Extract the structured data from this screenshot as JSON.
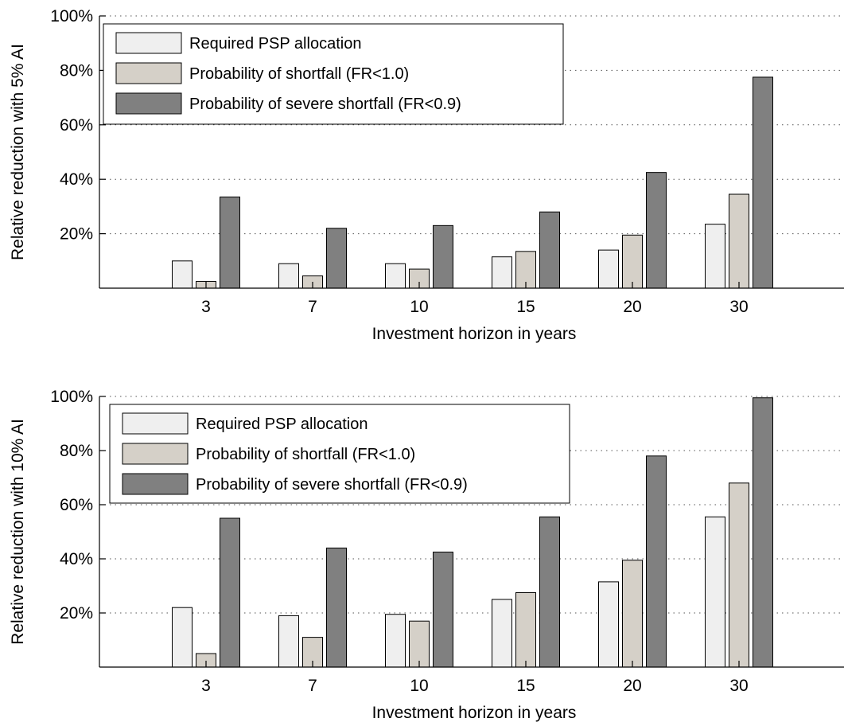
{
  "chart_data": [
    {
      "type": "bar",
      "xlabel": "Investment horizon in years",
      "ylabel": "Relative reduction with 5% AI",
      "categories": [
        "3",
        "7",
        "10",
        "15",
        "20",
        "30"
      ],
      "ylim": [
        0,
        100
      ],
      "yticks": [
        20,
        40,
        60,
        80,
        100
      ],
      "ytick_labels": [
        "20%",
        "40%",
        "60%",
        "80%",
        "100%"
      ],
      "grid": true,
      "legend_position": "top-left",
      "series": [
        {
          "name": "Required PSP allocation",
          "color": "#efefef",
          "values": [
            10,
            9,
            9,
            11.5,
            14,
            23.5
          ]
        },
        {
          "name": "Probability of shortfall (FR<1.0)",
          "color": "#d5d0c8",
          "values": [
            2.5,
            4.5,
            7,
            13.5,
            19.5,
            34.5
          ]
        },
        {
          "name": "Probability of severe shortfall (FR<0.9)",
          "color": "#808080",
          "values": [
            33.5,
            22,
            23,
            28,
            42.5,
            77.5
          ]
        }
      ]
    },
    {
      "type": "bar",
      "xlabel": "Investment horizon in years",
      "ylabel": "Relative reduction with 10% AI",
      "categories": [
        "3",
        "7",
        "10",
        "15",
        "20",
        "30"
      ],
      "ylim": [
        0,
        100
      ],
      "yticks": [
        20,
        40,
        60,
        80,
        100
      ],
      "ytick_labels": [
        "20%",
        "40%",
        "60%",
        "80%",
        "100%"
      ],
      "grid": true,
      "legend_position": "top-left",
      "series": [
        {
          "name": "Required PSP allocation",
          "color": "#efefef",
          "values": [
            22,
            19,
            19.5,
            25,
            31.5,
            55.5
          ]
        },
        {
          "name": "Probability of shortfall (FR<1.0)",
          "color": "#d5d0c8",
          "values": [
            5,
            11,
            17,
            27.5,
            39.5,
            68
          ]
        },
        {
          "name": "Probability of severe shortfall (FR<0.9)",
          "color": "#808080",
          "values": [
            55,
            44,
            42.5,
            55.5,
            78,
            99.5
          ]
        }
      ]
    }
  ]
}
